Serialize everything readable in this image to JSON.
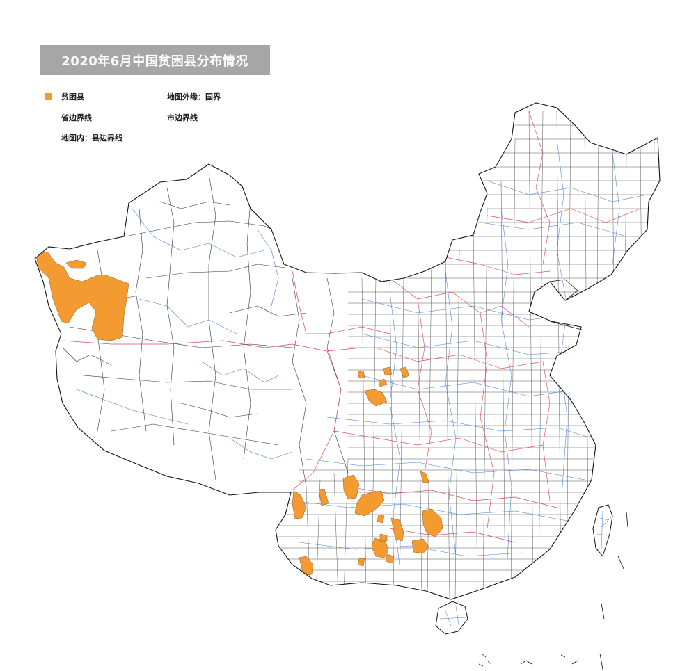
{
  "title": "2020年6月中国贫困县分布情况",
  "legend": {
    "poverty_county": {
      "label": "贫困县",
      "color": "#f39a31",
      "icon": "filled-square"
    },
    "national_border": {
      "label": "地图外缘：国界",
      "color": "#111111",
      "icon": "solid-line"
    },
    "provincial_border": {
      "label": "省边界线",
      "color": "#d9485f",
      "icon": "solid-line"
    },
    "city_border": {
      "label": "市边界线",
      "color": "#3f7fd6",
      "icon": "solid-line"
    },
    "county_border": {
      "label": "地图内：县边界线",
      "color": "#111111",
      "icon": "solid-line"
    }
  },
  "colors": {
    "background": "#ffffff",
    "title_box": "#a6a6a6",
    "title_text": "#ffffff",
    "land": "#ffffff"
  }
}
